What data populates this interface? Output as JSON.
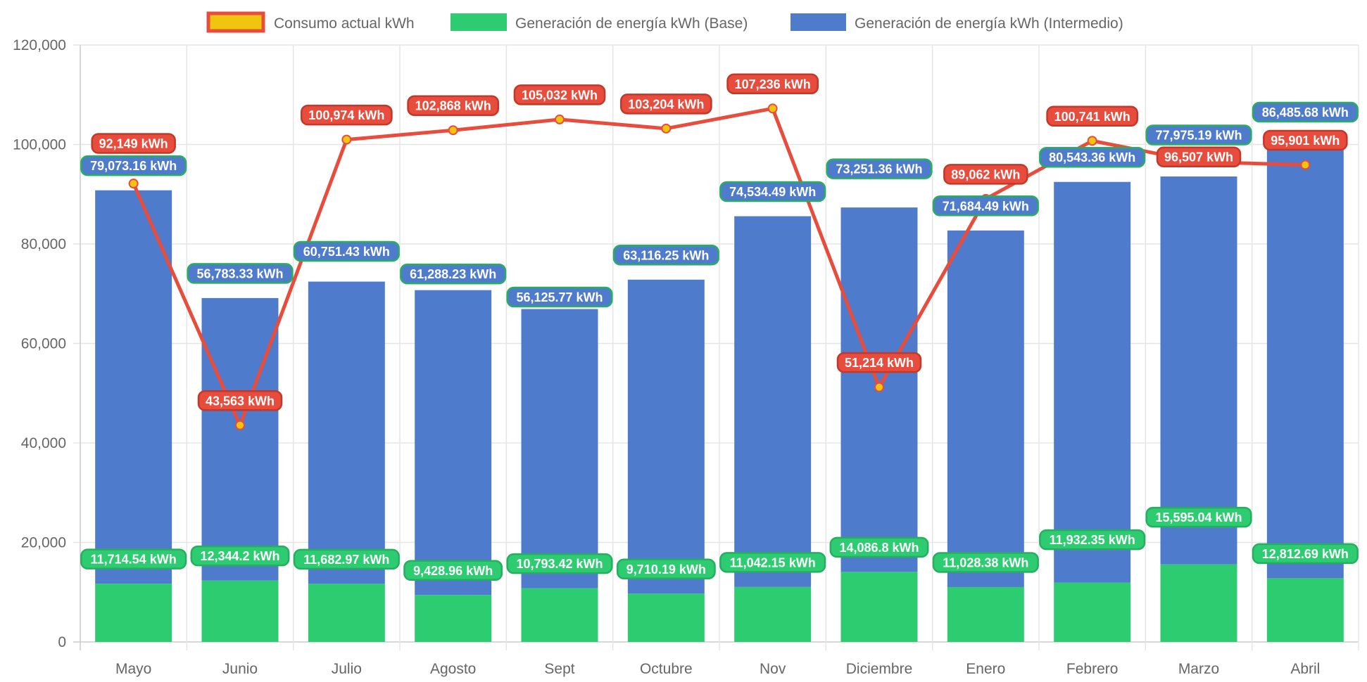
{
  "chart_data": {
    "type": "bar",
    "stacked": true,
    "categories": [
      "Mayo",
      "Junio",
      "Julio",
      "Agosto",
      "Sept",
      "Octubre",
      "Nov",
      "Diciembre",
      "Enero",
      "Febrero",
      "Marzo",
      "Abril"
    ],
    "ylim": [
      0,
      120000
    ],
    "yticks": [
      0,
      20000,
      40000,
      60000,
      80000,
      100000,
      120000
    ],
    "ytick_labels": [
      "0",
      "20,000",
      "40,000",
      "60,000",
      "80,000",
      "100,000",
      "120,000"
    ],
    "grid": true,
    "legend_position": "top",
    "unit_suffix": " kWh",
    "series": [
      {
        "name": "Consumo actual kWh",
        "type": "line",
        "color": "#e74c3c",
        "point_color": "#f1c40f",
        "values": [
          92149,
          43563,
          100974,
          102868,
          105032,
          103204,
          107236,
          51214,
          89062,
          100741,
          96507,
          95901
        ],
        "labels": [
          "92,149 kWh",
          "43,563 kWh",
          "100,974 kWh",
          "102,868 kWh",
          "105,032 kWh",
          "103,204 kWh",
          "107,236 kWh",
          "51,214 kWh",
          "89,062 kWh",
          "100,741 kWh",
          "96,507 kWh",
          "95,901 kWh"
        ]
      },
      {
        "name": "Generación de energía kWh (Base)",
        "type": "bar",
        "color": "#2ecc71",
        "values": [
          11714.54,
          12344.2,
          11682.97,
          9428.96,
          10793.42,
          9710.19,
          11042.15,
          14086.8,
          11028.38,
          11932.35,
          15595.04,
          12812.69
        ],
        "labels": [
          "11,714.54 kWh",
          "12,344.2 kWh",
          "11,682.97 kWh",
          "9,428.96 kWh",
          "10,793.42 kWh",
          "9,710.19 kWh",
          "11,042.15 kWh",
          "14,086.8 kWh",
          "11,028.38 kWh",
          "11,932.35 kWh",
          "15,595.04 kWh",
          "12,812.69 kWh"
        ]
      },
      {
        "name": "Generación de energía kWh (Intermedio)",
        "type": "bar",
        "color": "#4e7bcc",
        "values": [
          79073.16,
          56783.33,
          60751.43,
          61288.23,
          56125.77,
          63116.25,
          74534.49,
          73251.36,
          71684.49,
          80543.36,
          77975.19,
          86485.68
        ],
        "labels": [
          "79,073.16 kWh",
          "56,783.33 kWh",
          "60,751.43 kWh",
          "61,288.23 kWh",
          "56,125.77 kWh",
          "63,116.25 kWh",
          "74,534.49 kWh",
          "73,251.36 kWh",
          "71,684.49 kWh",
          "80,543.36 kWh",
          "77,975.19 kWh",
          "86,485.68 kWh"
        ]
      }
    ]
  }
}
